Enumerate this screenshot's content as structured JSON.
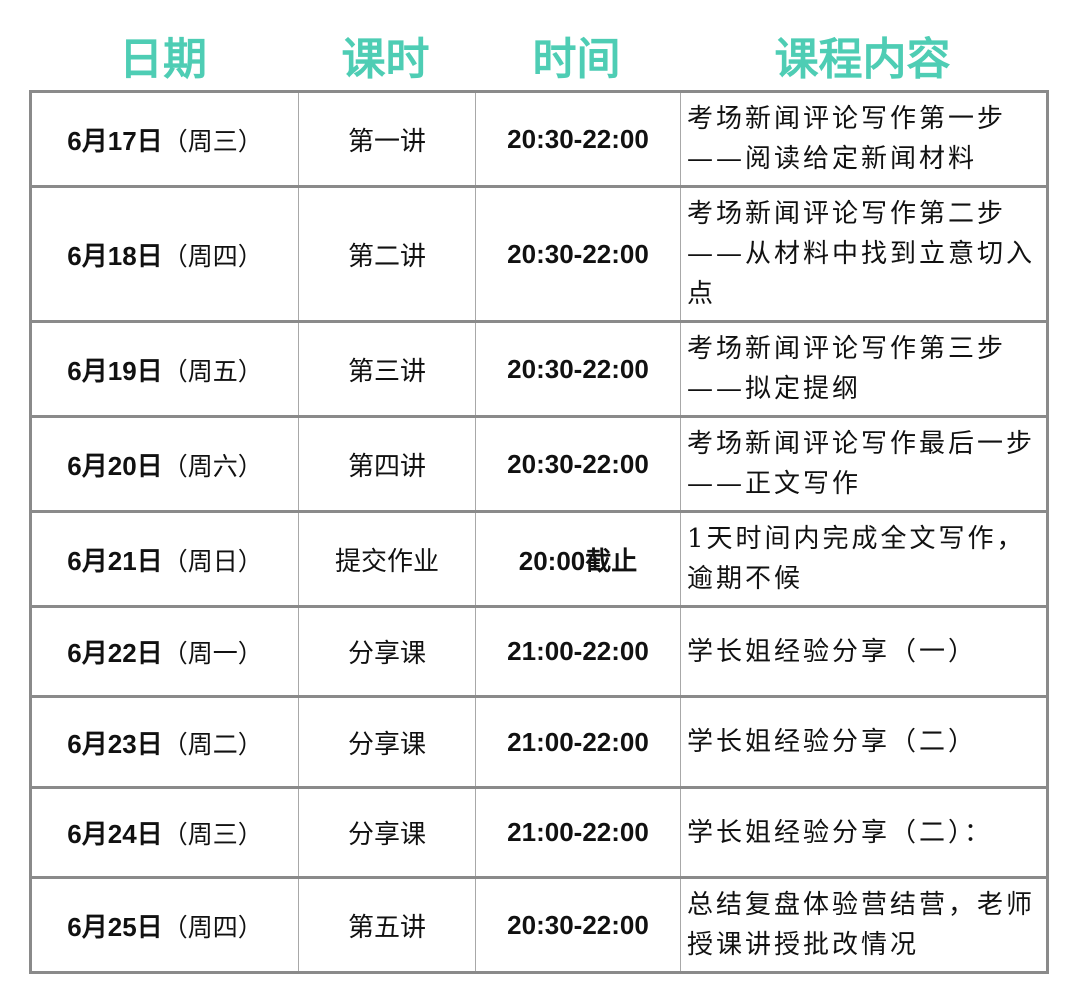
{
  "header": {
    "date": "日期",
    "lesson": "课时",
    "time": "时间",
    "content": "课程内容"
  },
  "header_color": "#4ecdb4",
  "rows": [
    {
      "date_num": "6月17日",
      "weekday": "（周三）",
      "lesson": "第一讲",
      "time": "20:30-22:00",
      "content": "考场新闻评论写作第一步——阅读给定新闻材料"
    },
    {
      "date_num": "6月18日",
      "weekday": "（周四）",
      "lesson": "第二讲",
      "time": "20:30-22:00",
      "content": "考场新闻评论写作第二步——从材料中找到立意切入点"
    },
    {
      "date_num": "6月19日",
      "weekday": "（周五）",
      "lesson": "第三讲",
      "time": "20:30-22:00",
      "content": "考场新闻评论写作第三步——拟定提纲"
    },
    {
      "date_num": "6月20日",
      "weekday": "（周六）",
      "lesson": "第四讲",
      "time": "20:30-22:00",
      "content": "考场新闻评论写作最后一步——正文写作"
    },
    {
      "date_num": "6月21日",
      "weekday": "（周日）",
      "lesson": "提交作业",
      "time": "20:00截止",
      "content": "1天时间内完成全文写作，逾期不候"
    },
    {
      "date_num": "6月22日",
      "weekday": "（周一）",
      "lesson": "分享课",
      "time": "21:00-22:00",
      "content": "学长姐经验分享（一）"
    },
    {
      "date_num": "6月23日",
      "weekday": "（周二）",
      "lesson": "分享课",
      "time": "21:00-22:00",
      "content": "学长姐经验分享（二）"
    },
    {
      "date_num": "6月24日",
      "weekday": "（周三）",
      "lesson": "分享课",
      "time": "21:00-22:00",
      "content": "学长姐经验分享（二）："
    },
    {
      "date_num": "6月25日",
      "weekday": "（周四）",
      "lesson": "第五讲",
      "time": "20:30-22:00",
      "content": "总结复盘体验营结营，老师授课讲授批改情况"
    }
  ]
}
